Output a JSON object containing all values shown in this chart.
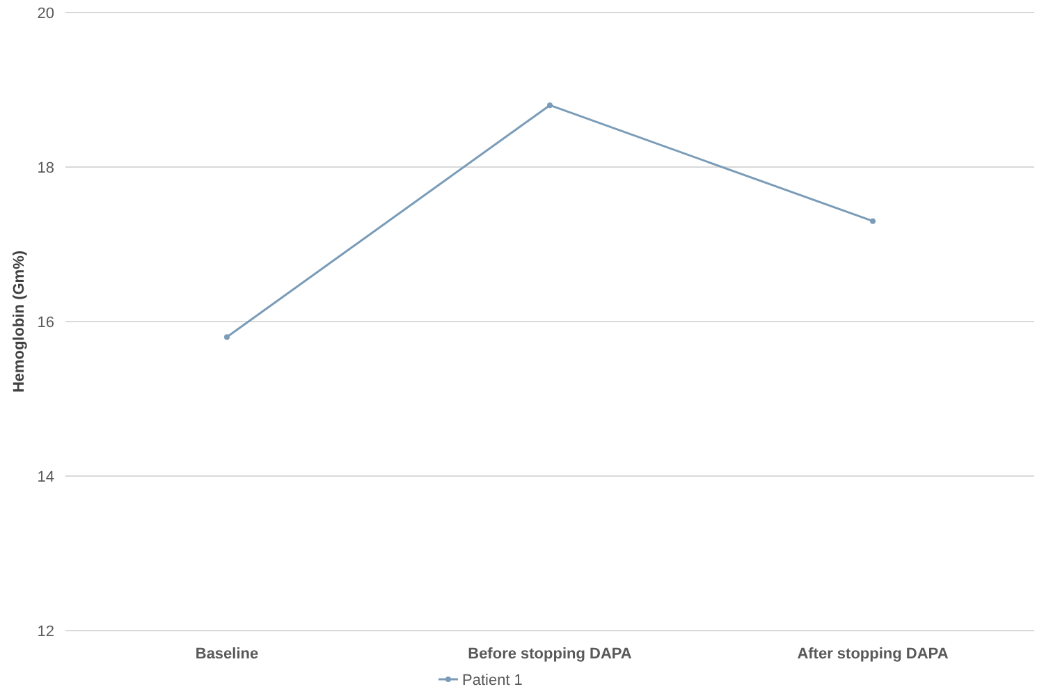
{
  "chart_data": {
    "type": "line",
    "ylabel": "Hemoglobin (Gm%)",
    "categories": [
      "Baseline",
      "Before stopping DAPA",
      "After stopping DAPA"
    ],
    "series": [
      {
        "name": "Patient 1",
        "color": "#7a9cb8",
        "values": [
          15.8,
          18.8,
          17.3
        ]
      }
    ],
    "ylim": [
      12,
      20
    ],
    "yticks": [
      12,
      14,
      16,
      18,
      20
    ],
    "grid": "y",
    "legend": "bottom",
    "marker": "circle",
    "line_style": "solid"
  }
}
